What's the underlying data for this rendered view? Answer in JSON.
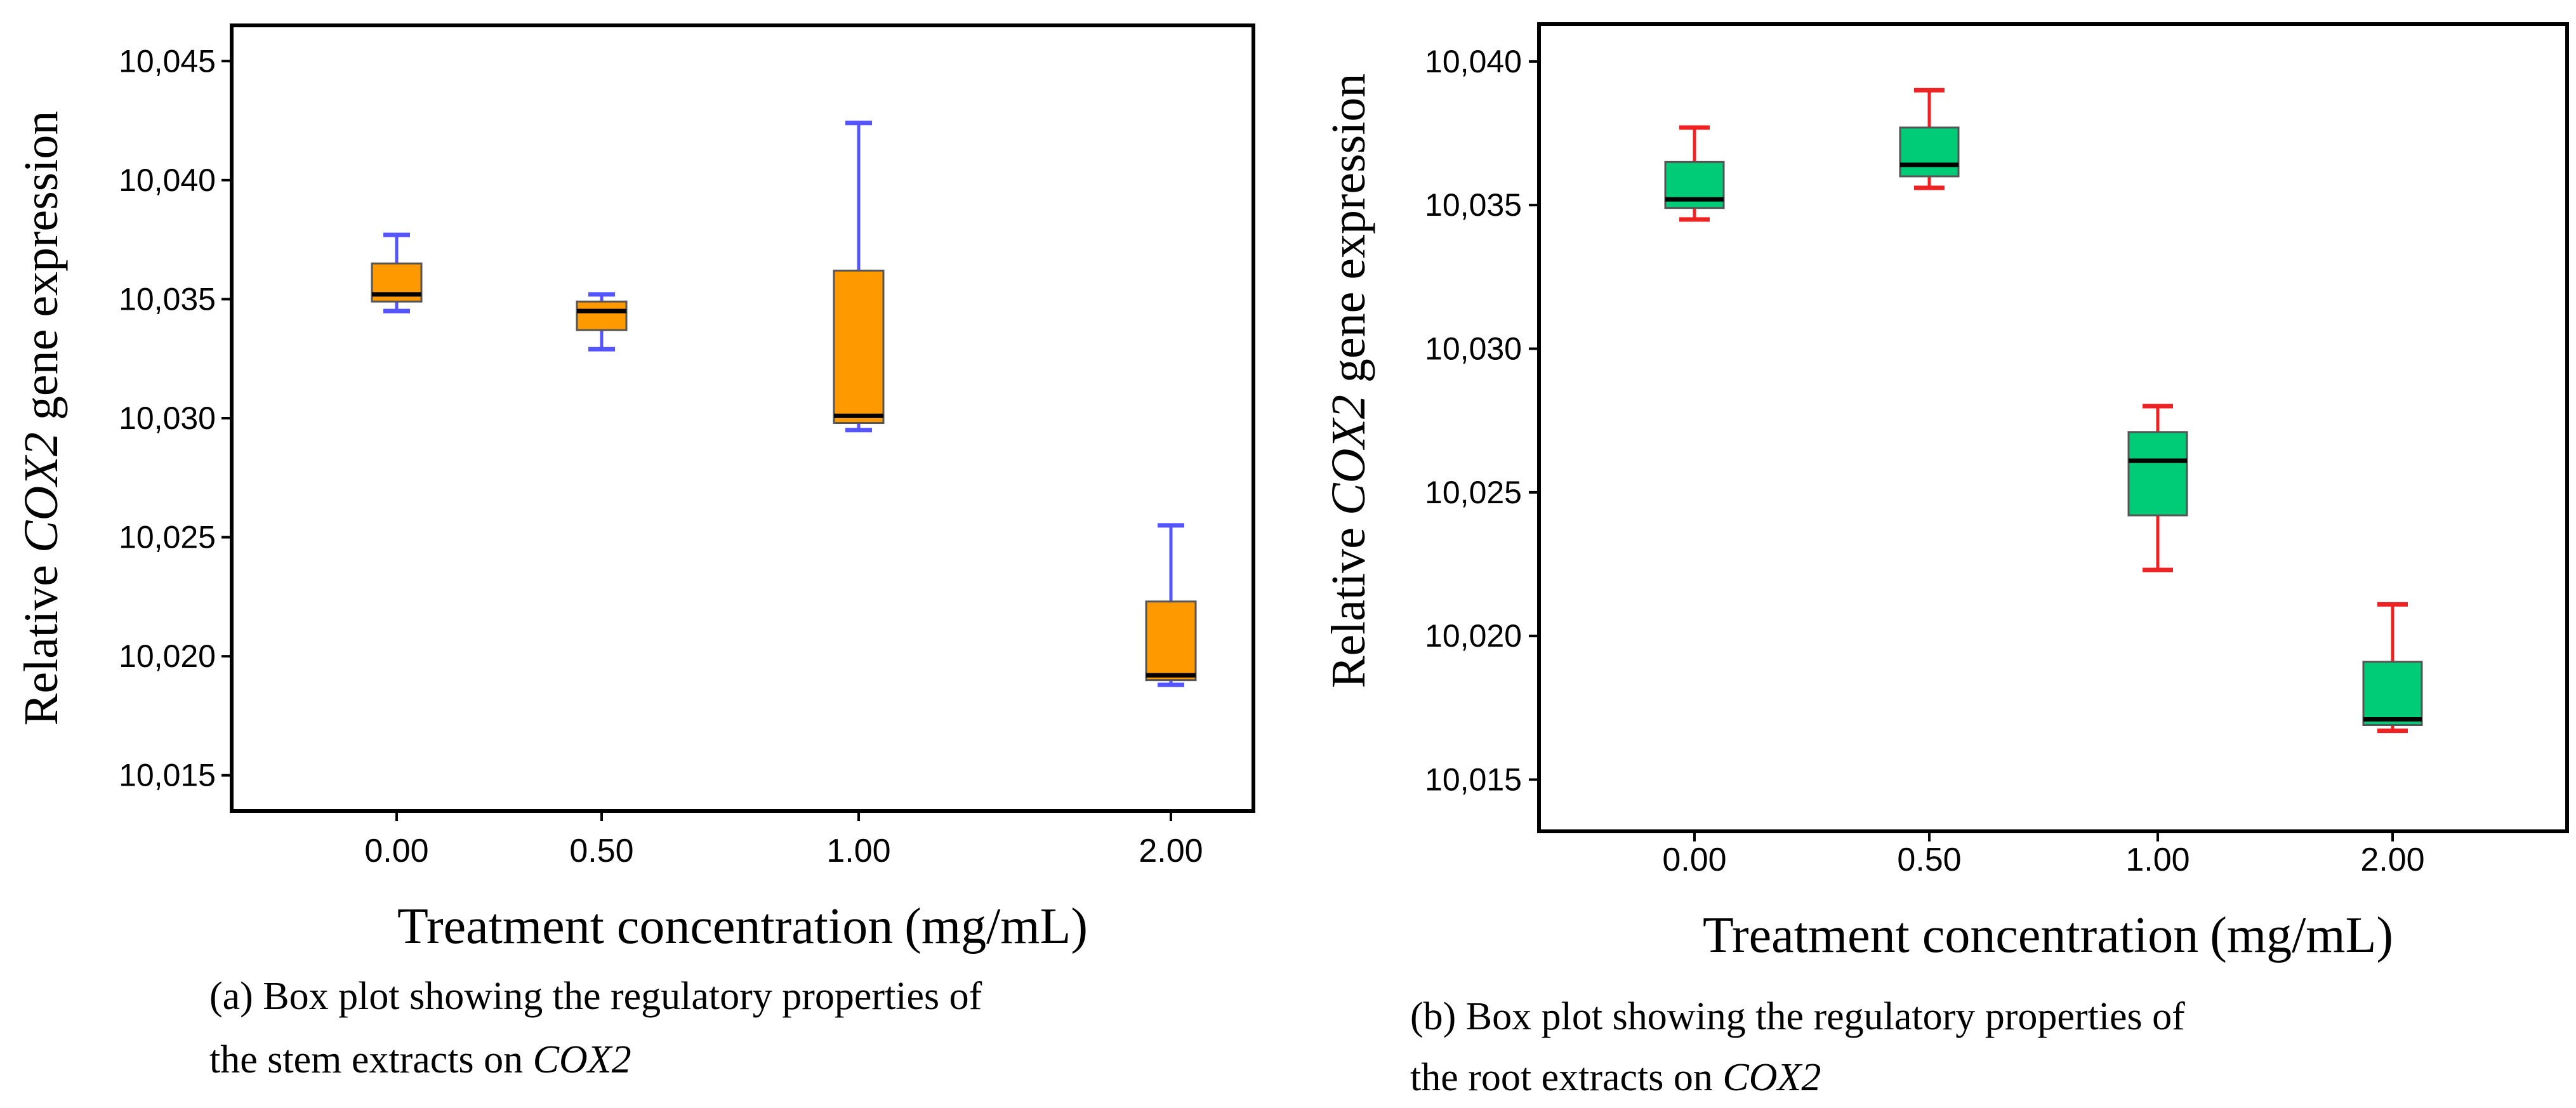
{
  "chart_data": [
    {
      "type": "box",
      "title": "",
      "xlabel_main": "Treatment concentration",
      "xlabel_unit": "(mg/mL)",
      "ylabel_prefix": "Relative ",
      "ylabel_gene": "COX2",
      "ylabel_suffix": " gene expression",
      "categories": [
        "0.00",
        "0.50",
        "1.00",
        "2.00"
      ],
      "yticks": [
        "10,015",
        "10,020",
        "10,025",
        "10,030",
        "10,035",
        "10,040",
        "10,045"
      ],
      "ytick_values": [
        10.015,
        10.02,
        10.025,
        10.03,
        10.035,
        10.04,
        10.045
      ],
      "ylim": [
        10.0135,
        10.0465
      ],
      "box_color": "#ff9900",
      "whisker_color": "#5555ff",
      "series": [
        {
          "name": "0.00",
          "min": 10.0345,
          "q1": 10.0349,
          "median": 10.0352,
          "q3": 10.0365,
          "max": 10.0377
        },
        {
          "name": "0.50",
          "min": 10.0329,
          "q1": 10.0337,
          "median": 10.0345,
          "q3": 10.0349,
          "max": 10.0352
        },
        {
          "name": "1.00",
          "min": 10.0295,
          "q1": 10.0298,
          "median": 10.0301,
          "q3": 10.0362,
          "max": 10.0424
        },
        {
          "name": "2.00",
          "min": 10.0188,
          "q1": 10.019,
          "median": 10.0192,
          "q3": 10.0223,
          "max": 10.0255
        }
      ],
      "caption_line1": "(a) Box plot showing the regulatory properties of",
      "caption_line2_prefix": "the stem extracts on ",
      "caption_line2_gene": "COX2"
    },
    {
      "type": "box",
      "title": "",
      "xlabel_main": "Treatment concentration",
      "xlabel_unit": "(mg/mL)",
      "ylabel_prefix": "Relative ",
      "ylabel_gene": "COX2",
      "ylabel_suffix": " gene expression",
      "categories": [
        "0.00",
        "0.50",
        "1.00",
        "2.00"
      ],
      "yticks": [
        "10,015",
        "10,020",
        "10,025",
        "10,030",
        "10,035",
        "10,040"
      ],
      "ytick_values": [
        10.015,
        10.02,
        10.025,
        10.03,
        10.035,
        10.04
      ],
      "ylim": [
        10.0132,
        10.0413
      ],
      "box_color": "#00cc77",
      "whisker_color": "#ee2222",
      "series": [
        {
          "name": "0.00",
          "min": 10.0345,
          "q1": 10.0349,
          "median": 10.0352,
          "q3": 10.0365,
          "max": 10.0377
        },
        {
          "name": "0.50",
          "min": 10.0356,
          "q1": 10.036,
          "median": 10.0364,
          "q3": 10.0377,
          "max": 10.039
        },
        {
          "name": "1.00",
          "min": 10.0223,
          "q1": 10.0242,
          "median": 10.0261,
          "q3": 10.0271,
          "max": 10.028
        },
        {
          "name": "2.00",
          "min": 10.0167,
          "q1": 10.0169,
          "median": 10.0171,
          "q3": 10.0191,
          "max": 10.0211
        }
      ],
      "caption_line1": "(b) Box plot showing the regulatory properties of",
      "caption_line2_prefix": "the root extracts on ",
      "caption_line2_gene": "COX2"
    }
  ]
}
